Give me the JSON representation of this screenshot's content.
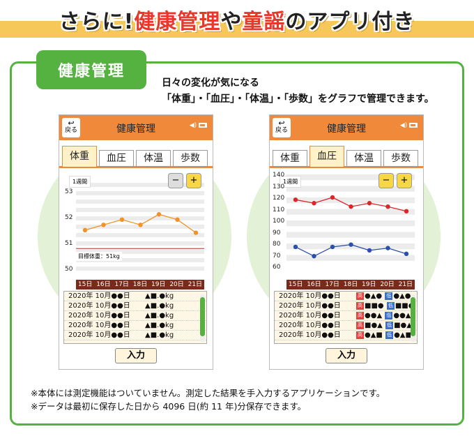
{
  "banner": {
    "part1": "さらに!",
    "part2": "健康管理",
    "part3": "や",
    "part4": "童謡",
    "part5": "のアプリ付き"
  },
  "section_tag": "健康管理",
  "description": {
    "line1": "日々の変化が気になる",
    "line2": "「体重」・「血圧」・「体温」・「歩数」をグラフで管理できます。"
  },
  "app": {
    "back_label": "戻る",
    "title": "健康管理",
    "tabs": [
      "体重",
      "血圧",
      "体温",
      "歩数"
    ],
    "period": "1週間",
    "input_label": "入力",
    "dates": [
      "15日",
      "16日",
      "17日",
      "18日",
      "19日",
      "20日",
      "21日"
    ],
    "icons": [
      "back-arrow-icon",
      "speaker-icon",
      "battery-icon",
      "zoom-out-icon",
      "zoom-in-icon"
    ]
  },
  "weight_screen": {
    "target_label": "目標体重：51kg",
    "y_ticks": [
      "53",
      "52",
      "51",
      "50"
    ],
    "rows": [
      {
        "date": "2020年 10月●●日",
        "value": "▲■.●kg"
      },
      {
        "date": "2020年 10月●●日",
        "value": "▲■.●kg"
      },
      {
        "date": "2020年 10月●●日",
        "value": "▲■.●kg"
      },
      {
        "date": "2020年 10月●●日",
        "value": "▲■.●kg"
      },
      {
        "date": "2020年 10月●●日",
        "value": "▲■.●kg"
      }
    ]
  },
  "bp_screen": {
    "y_ticks": [
      "140",
      "130",
      "120",
      "110",
      "100",
      "90",
      "80",
      "70",
      "60"
    ],
    "hi_badge": "高",
    "lo_badge": "低",
    "rows": [
      {
        "date": "2020年 10月●●日",
        "hi": "●▲●",
        "lo": "●▲●"
      },
      {
        "date": "2020年 10月●●日",
        "hi": "■■●",
        "lo": "■■●"
      },
      {
        "date": "2020年 10月●●日",
        "hi": "●●▲",
        "lo": "●●▲"
      },
      {
        "date": "2020年 10月●●日",
        "hi": "■●▲",
        "lo": "■●▲"
      },
      {
        "date": "2020年 10月●●日",
        "hi": "●▲■",
        "lo": "●▲■"
      }
    ]
  },
  "notes": {
    "line1": "※本体には測定機能はついていません。測定した結果を手入力するアプリケーションです。",
    "line2": "※データは最初に保存した日から 4096 日(約 11 年)分保存できます。"
  },
  "colors": {
    "accent": "#f08a3a",
    "brand_green": "#55b240",
    "weight_line": "#f0922a",
    "hi_line": "#d8282b",
    "lo_line": "#2a4fa8",
    "target_line": "#c0281f"
  },
  "chart_data": [
    {
      "type": "line",
      "title": "",
      "x": [
        "15日",
        "16日",
        "17日",
        "18日",
        "19日",
        "20日",
        "21日"
      ],
      "series": [
        {
          "values": [
            51.7,
            51.9,
            52.1,
            51.9,
            52.3,
            52.1,
            51.6
          ]
        }
      ],
      "reference_line": 51,
      "ylim": [
        50,
        53.5
      ]
    },
    {
      "type": "line",
      "title": "",
      "x": [
        "15日",
        "16日",
        "17日",
        "18日",
        "19日",
        "20日",
        "21日"
      ],
      "series": [
        {
          "values": [
            118,
            115,
            120,
            112,
            115,
            112,
            108
          ]
        },
        {
          "values": [
            77,
            69,
            77,
            79,
            74,
            76,
            71
          ]
        }
      ],
      "ylim": [
        60,
        140
      ]
    }
  ]
}
